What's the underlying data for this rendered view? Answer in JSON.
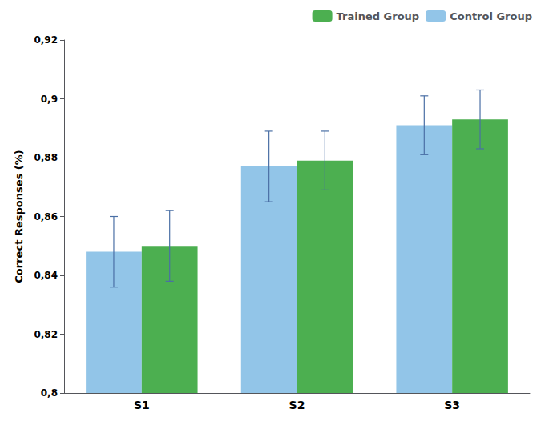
{
  "chart_data": {
    "type": "bar",
    "categories": [
      "S1",
      "S2",
      "S3"
    ],
    "series": [
      {
        "name": "Control Group",
        "color": "#92C5E8",
        "values": [
          0.848,
          0.877,
          0.891
        ],
        "errors": [
          0.012,
          0.012,
          0.01
        ]
      },
      {
        "name": "Trained Group",
        "color": "#4CAF50",
        "values": [
          0.85,
          0.879,
          0.893
        ],
        "errors": [
          0.012,
          0.01,
          0.01
        ]
      }
    ],
    "ylabel": "Correct Responses (%)",
    "ylim": [
      0.8,
      0.92
    ],
    "yticks": [
      {
        "value": 0.8,
        "label": "0,8"
      },
      {
        "value": 0.82,
        "label": "0,82"
      },
      {
        "value": 0.84,
        "label": "0,84"
      },
      {
        "value": 0.86,
        "label": "0,86"
      },
      {
        "value": 0.88,
        "label": "0,88"
      },
      {
        "value": 0.9,
        "label": "0,9"
      },
      {
        "value": 0.92,
        "label": "0,92"
      }
    ],
    "grid": false,
    "legend": "upper right"
  }
}
